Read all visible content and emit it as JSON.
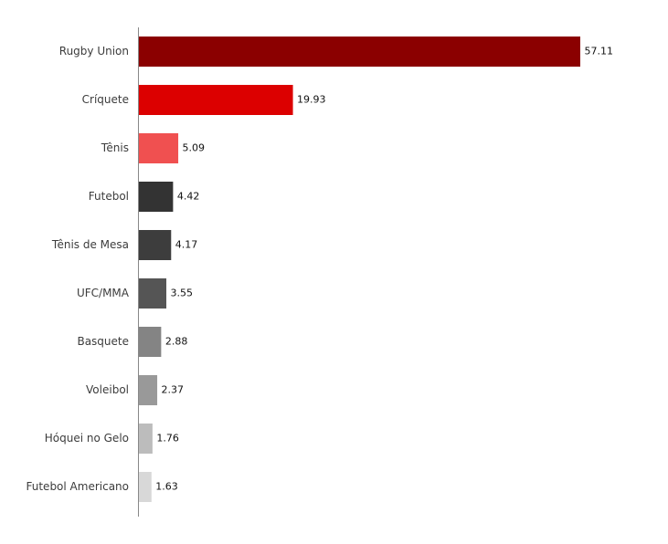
{
  "chart_data": {
    "type": "bar",
    "orientation": "horizontal",
    "title": "",
    "xlabel": "",
    "ylabel": "",
    "categories": [
      "Rugby Union",
      "Críquete",
      "Tênis",
      "Futebol",
      "Tênis de Mesa",
      "UFC/MMA",
      "Basquete",
      "Voleibol",
      "Hóquei no Gelo",
      "Futebol Americano"
    ],
    "values": [
      57.11,
      19.93,
      5.09,
      4.42,
      4.17,
      3.55,
      2.88,
      2.37,
      1.76,
      1.63
    ],
    "value_labels": [
      "57.11",
      "19.93",
      "5.09",
      "4.42",
      "4.17",
      "3.55",
      "2.88",
      "2.37",
      "1.76",
      "1.63"
    ],
    "colors": [
      "#8b0000",
      "#dc0000",
      "#f05050",
      "#333333",
      "#3d3d3d",
      "#555555",
      "#848484",
      "#999999",
      "#bcbcbc",
      "#d8d8d8"
    ],
    "xlim": [
      0,
      57.11
    ],
    "grid": false,
    "legend": "none",
    "axis_color": "#888888"
  }
}
